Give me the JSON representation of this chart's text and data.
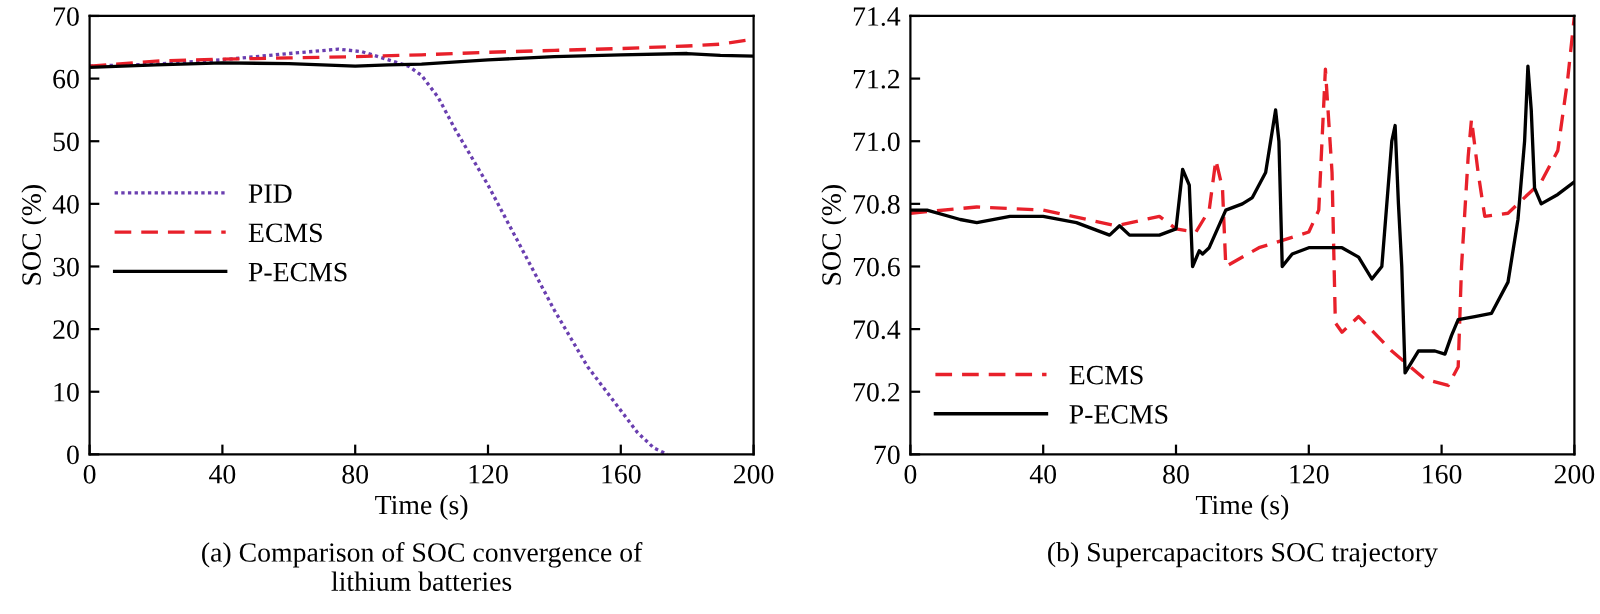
{
  "chart_data": [
    {
      "type": "line",
      "xlabel": "Time (s)",
      "ylabel": "SOC (%)",
      "annotations": [
        "(a) Comparison of SOC convergence of\nlithium batteries"
      ],
      "xlim": [
        0,
        200
      ],
      "ylim": [
        0,
        70
      ],
      "xticks": [
        0,
        40,
        80,
        120,
        160,
        200
      ],
      "yticks": [
        0,
        10,
        20,
        30,
        40,
        50,
        60,
        70
      ],
      "grid": false,
      "legend": "center left",
      "series": [
        {
          "name": "PID",
          "color": "#6a3fb0",
          "line_style": "dotted",
          "x": [
            0,
            20,
            40,
            60,
            75,
            82,
            90,
            96,
            100,
            105,
            110,
            115,
            120,
            125,
            130,
            135,
            140,
            145,
            150,
            155,
            160,
            165,
            170,
            174
          ],
          "values": [
            62,
            62.3,
            63,
            64,
            64.7,
            64.3,
            63,
            62,
            60.5,
            57,
            52,
            47.5,
            43,
            38,
            33,
            28,
            23,
            18.5,
            14,
            10.5,
            7,
            3.5,
            1,
            0
          ]
        },
        {
          "name": "ECMS",
          "color": "#e8202a",
          "line_style": "dashed",
          "x": [
            0,
            20,
            40,
            60,
            80,
            100,
            120,
            140,
            160,
            180,
            190,
            200
          ],
          "values": [
            62,
            62.8,
            63.1,
            63.3,
            63.5,
            63.8,
            64.2,
            64.5,
            64.8,
            65.2,
            65.5,
            66.3
          ]
        },
        {
          "name": "P-ECMS",
          "color": "#000000",
          "line_style": "solid",
          "x": [
            0,
            20,
            40,
            60,
            80,
            90,
            100,
            120,
            140,
            160,
            180,
            190,
            200
          ],
          "values": [
            61.8,
            62.2,
            62.5,
            62.4,
            62,
            62.2,
            62.3,
            63,
            63.5,
            63.8,
            64,
            63.7,
            63.6
          ]
        }
      ]
    },
    {
      "type": "line",
      "xlabel": "Time (s)",
      "ylabel": "SOC (%)",
      "annotations": [
        "(b) Supercapacitors SOC trajectory"
      ],
      "xlim": [
        0,
        200
      ],
      "ylim": [
        70,
        71.4
      ],
      "xticks": [
        0,
        40,
        80,
        120,
        160,
        200
      ],
      "yticks": [
        70,
        70.2,
        70.4,
        70.6,
        70.8,
        {
          "value": 71,
          "label": "71.0"
        },
        71.2,
        71.4
      ],
      "grid": false,
      "legend": "lower left",
      "series": [
        {
          "name": "ECMS",
          "color": "#e8202a",
          "line_style": "dashed",
          "x": [
            0,
            20,
            40,
            62,
            75,
            80,
            86,
            90,
            92,
            94,
            95,
            105,
            120,
            123,
            125,
            127,
            128,
            130,
            135,
            145,
            155,
            162,
            165,
            166,
            168,
            169,
            171,
            173,
            180,
            190,
            195,
            198,
            200
          ],
          "values": [
            70.77,
            70.79,
            70.78,
            70.73,
            70.76,
            70.72,
            70.71,
            70.78,
            70.94,
            70.85,
            70.6,
            70.66,
            70.71,
            70.78,
            71.23,
            70.9,
            70.42,
            70.39,
            70.44,
            70.33,
            70.24,
            70.22,
            70.28,
            70.6,
            70.95,
            71.07,
            70.9,
            70.76,
            70.77,
            70.87,
            70.97,
            71.2,
            71.4
          ]
        },
        {
          "name": "P-ECMS",
          "color": "#000000",
          "line_style": "solid",
          "x": [
            0,
            5,
            15,
            20,
            30,
            40,
            50,
            60,
            63,
            66,
            75,
            80,
            82,
            84,
            85,
            87,
            88,
            90,
            95,
            100,
            103,
            107,
            110,
            111,
            112,
            115,
            120,
            130,
            135,
            139,
            142,
            145,
            146,
            147,
            148,
            149,
            153,
            158,
            161,
            163,
            165,
            170,
            175,
            180,
            183,
            185,
            186,
            187,
            188,
            190,
            195,
            200
          ],
          "values": [
            70.78,
            70.78,
            70.75,
            70.74,
            70.76,
            70.76,
            70.74,
            70.7,
            70.73,
            70.7,
            70.7,
            70.72,
            70.91,
            70.86,
            70.6,
            70.65,
            70.64,
            70.66,
            70.78,
            70.8,
            70.82,
            70.9,
            71.1,
            71.0,
            70.6,
            70.64,
            70.66,
            70.66,
            70.63,
            70.56,
            70.6,
            71.0,
            71.05,
            70.8,
            70.6,
            70.26,
            70.33,
            70.33,
            70.32,
            70.38,
            70.43,
            70.44,
            70.45,
            70.55,
            70.75,
            71.0,
            71.24,
            71.1,
            70.85,
            70.8,
            70.83,
            70.87
          ]
        }
      ]
    }
  ]
}
